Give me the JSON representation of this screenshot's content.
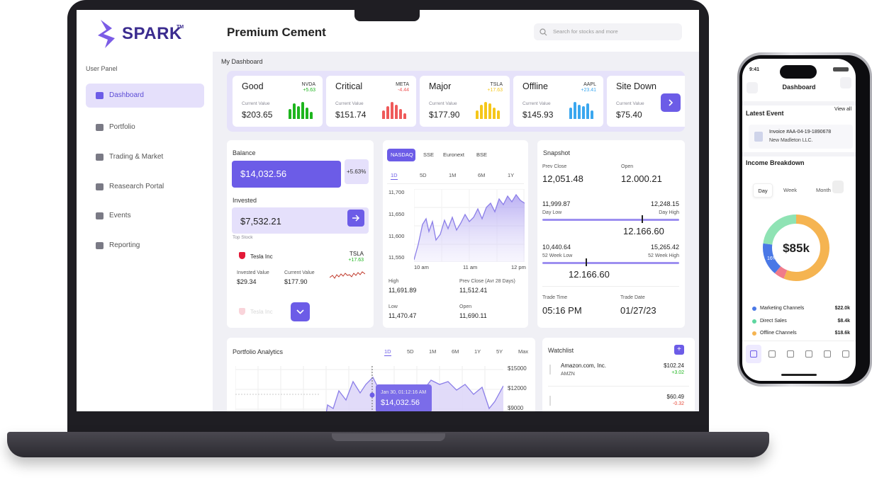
{
  "header": {
    "brand": "SPARK",
    "brand_mark": "TM",
    "title": "Premium Cement",
    "search_placeholder": "Search for stocks and more"
  },
  "sidebar": {
    "section": "User Panel",
    "items": [
      "Dashboard",
      "Portfolio",
      "Trading & Market",
      "Reasearch Portal",
      "Events",
      "Reporting"
    ]
  },
  "dashboard": {
    "heading": "My Dashboard"
  },
  "status_cards": [
    {
      "status": "Good",
      "ticker": "NVDA",
      "change": "+5.63",
      "label": "Current Value",
      "value": "$203.65",
      "color": "#1db51d"
    },
    {
      "status": "Critical",
      "ticker": "META",
      "change": "-4.44",
      "label": "Current Value",
      "value": "$151.74",
      "color": "#ef5a5a"
    },
    {
      "status": "Major",
      "ticker": "TSLA",
      "change": "+17.63",
      "label": "Current Value",
      "value": "$177.90",
      "color": "#f5c71a"
    },
    {
      "status": "Offline",
      "ticker": "AAPL",
      "change": "+23.41",
      "label": "Current Value",
      "value": "$145.93",
      "color": "#3aa7ef"
    },
    {
      "status": "Site Down",
      "label": "Current Value",
      "value": "$75.40",
      "color": "#8a8a8a"
    }
  ],
  "balance": {
    "label": "Balance",
    "value": "$14,032.56",
    "change": "+5.63%"
  },
  "invested": {
    "label": "Invested",
    "value": "$7,532.21"
  },
  "top_stock": {
    "label": "Top Stock",
    "name": "Tesla Inc",
    "ticker": "TSLA",
    "change": "+17.63",
    "invested_label": "Invested Value",
    "invested": "$29.34",
    "current_label": "Current Value",
    "current": "$177.90",
    "next_name": "Tesla Inc"
  },
  "market": {
    "exchanges": [
      "NASDAQ",
      "SSE",
      "Euronext",
      "BSE"
    ],
    "ranges": [
      "1D",
      "5D",
      "1M",
      "6M",
      "1Y"
    ],
    "y_ticks": [
      "11,700",
      "11,650",
      "11,600",
      "11,550"
    ],
    "x_ticks": [
      "10 am",
      "11 am",
      "12 pm"
    ],
    "stats": [
      {
        "label": "High",
        "value": "11,691.89"
      },
      {
        "label": "Prev Close (Avr 28 Days)",
        "value": "11,512.41"
      },
      {
        "label": "Low",
        "value": "11,470.47"
      },
      {
        "label": "Open",
        "value": "11,690.11"
      }
    ]
  },
  "snapshot": {
    "title": "Snapshot",
    "prev_close_label": "Prev Close",
    "prev_close": "12,051.48",
    "open_label": "Open",
    "open": "12.000.21",
    "day_low": "11,999.87",
    "day_high": "12,248.15",
    "day_low_label": "Day Low",
    "day_high_label": "Day High",
    "day_current": "12.166.60",
    "week_low": "10,440.64",
    "week_high": "15,265.42",
    "week_low_label": "52 Week Low",
    "week_high_label": "52 Week High",
    "week_current": "12.166.60",
    "trade_time_label": "Trade Time",
    "trade_time": "05:16 PM",
    "trade_date_label": "Trade Date",
    "trade_date": "01/27/23"
  },
  "portfolio": {
    "title": "Portfolio Analytics",
    "ranges": [
      "1D",
      "5D",
      "1M",
      "6M",
      "1Y",
      "5Y",
      "Max"
    ],
    "y_ticks": [
      "$15000",
      "$12000",
      "$9000"
    ],
    "tooltip_date": "Jan 30, 01:12:16 AM",
    "tooltip_value": "$14,032.56"
  },
  "watchlist": {
    "title": "Watchlist",
    "add": "+",
    "items": [
      {
        "name": "Amazon.com, Inc.",
        "ticker": "AMZN",
        "price": "$102.24",
        "change": "+3.02"
      },
      {
        "price": "$60.49",
        "change": "-0.32"
      }
    ]
  },
  "phone": {
    "time": "9:41",
    "title": "Dashboard",
    "latest_event": "Latest Event",
    "view_all": "View all",
    "invoice": "Invoice #AA-04-19-1890678",
    "company": "New Madleton LLC.",
    "income_title": "Income Breakdown",
    "tabs": [
      "Day",
      "Week",
      "Month"
    ],
    "total": "$85k",
    "segment_label": "16%",
    "legend": [
      {
        "name": "Marketing Channels",
        "value": "$22.0k",
        "color": "#4a78e6"
      },
      {
        "name": "Direct Sales",
        "value": "$8.4k",
        "color": "#5ed6a0"
      },
      {
        "name": "Offline Channels",
        "value": "$18.6k",
        "color": "#f5b451"
      }
    ]
  }
}
